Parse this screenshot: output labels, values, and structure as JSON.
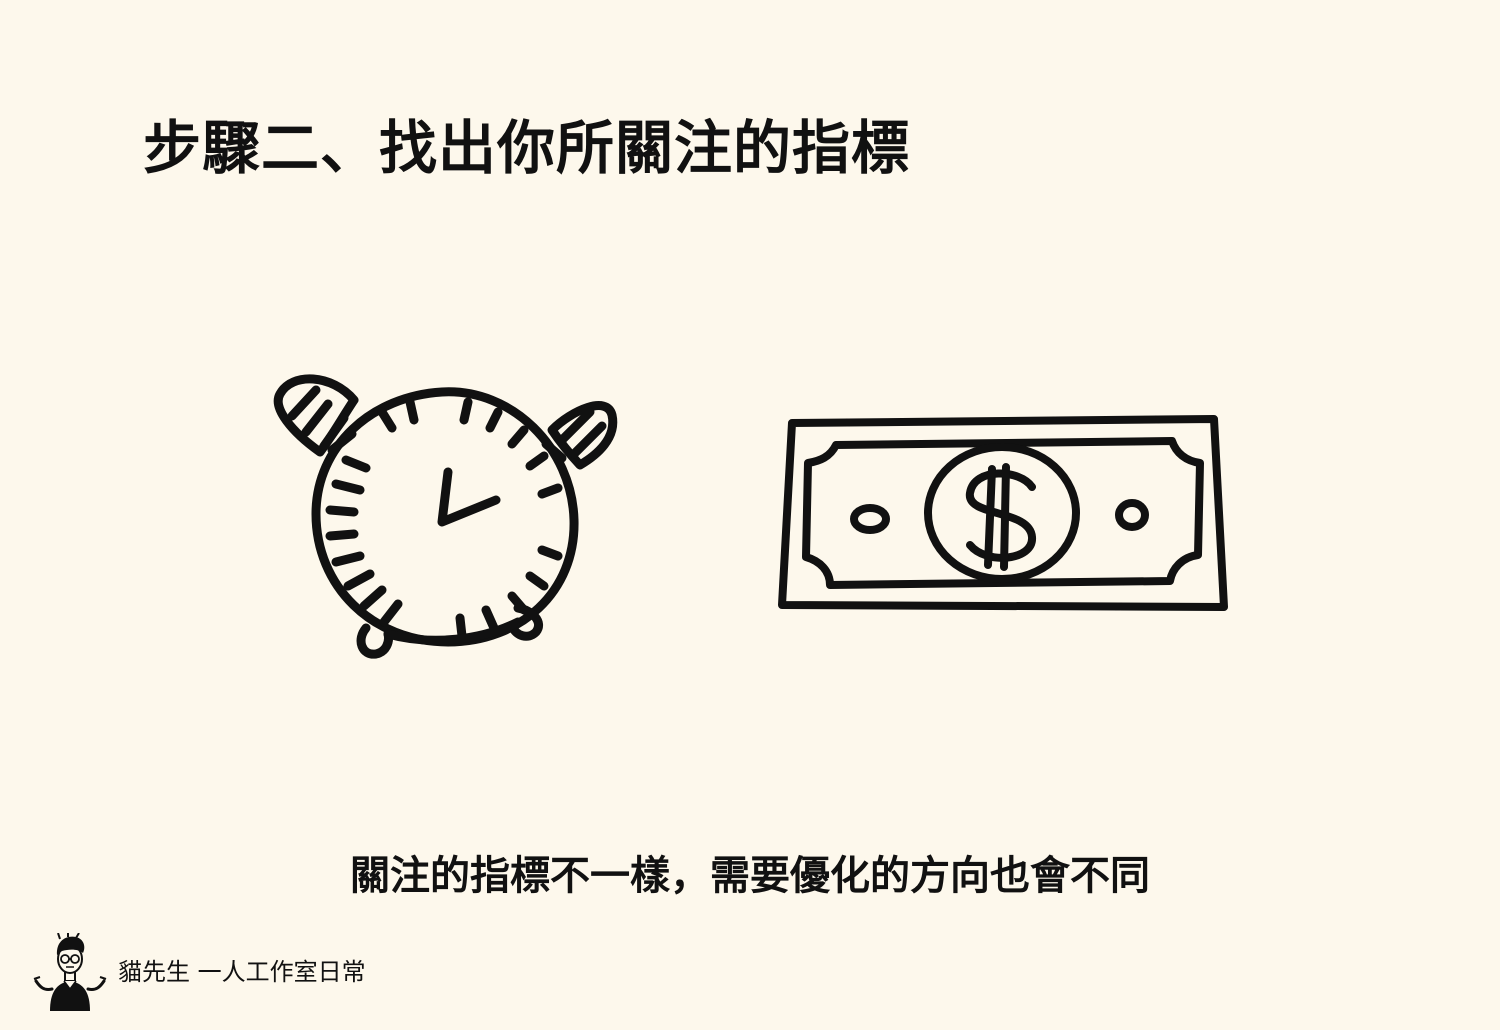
{
  "slide": {
    "title": "步驟二、找出你所關注的指標",
    "caption": "關注的指標不一樣，需要優化的方向也會不同",
    "footer": {
      "brand": "貓先生 一人工作室日常"
    }
  },
  "icons": {
    "left": "alarm-clock-icon",
    "right": "dollar-bill-icon",
    "footer": "avatar-illustration"
  },
  "colors": {
    "background": "#fdf8ec",
    "ink": "#111111"
  }
}
